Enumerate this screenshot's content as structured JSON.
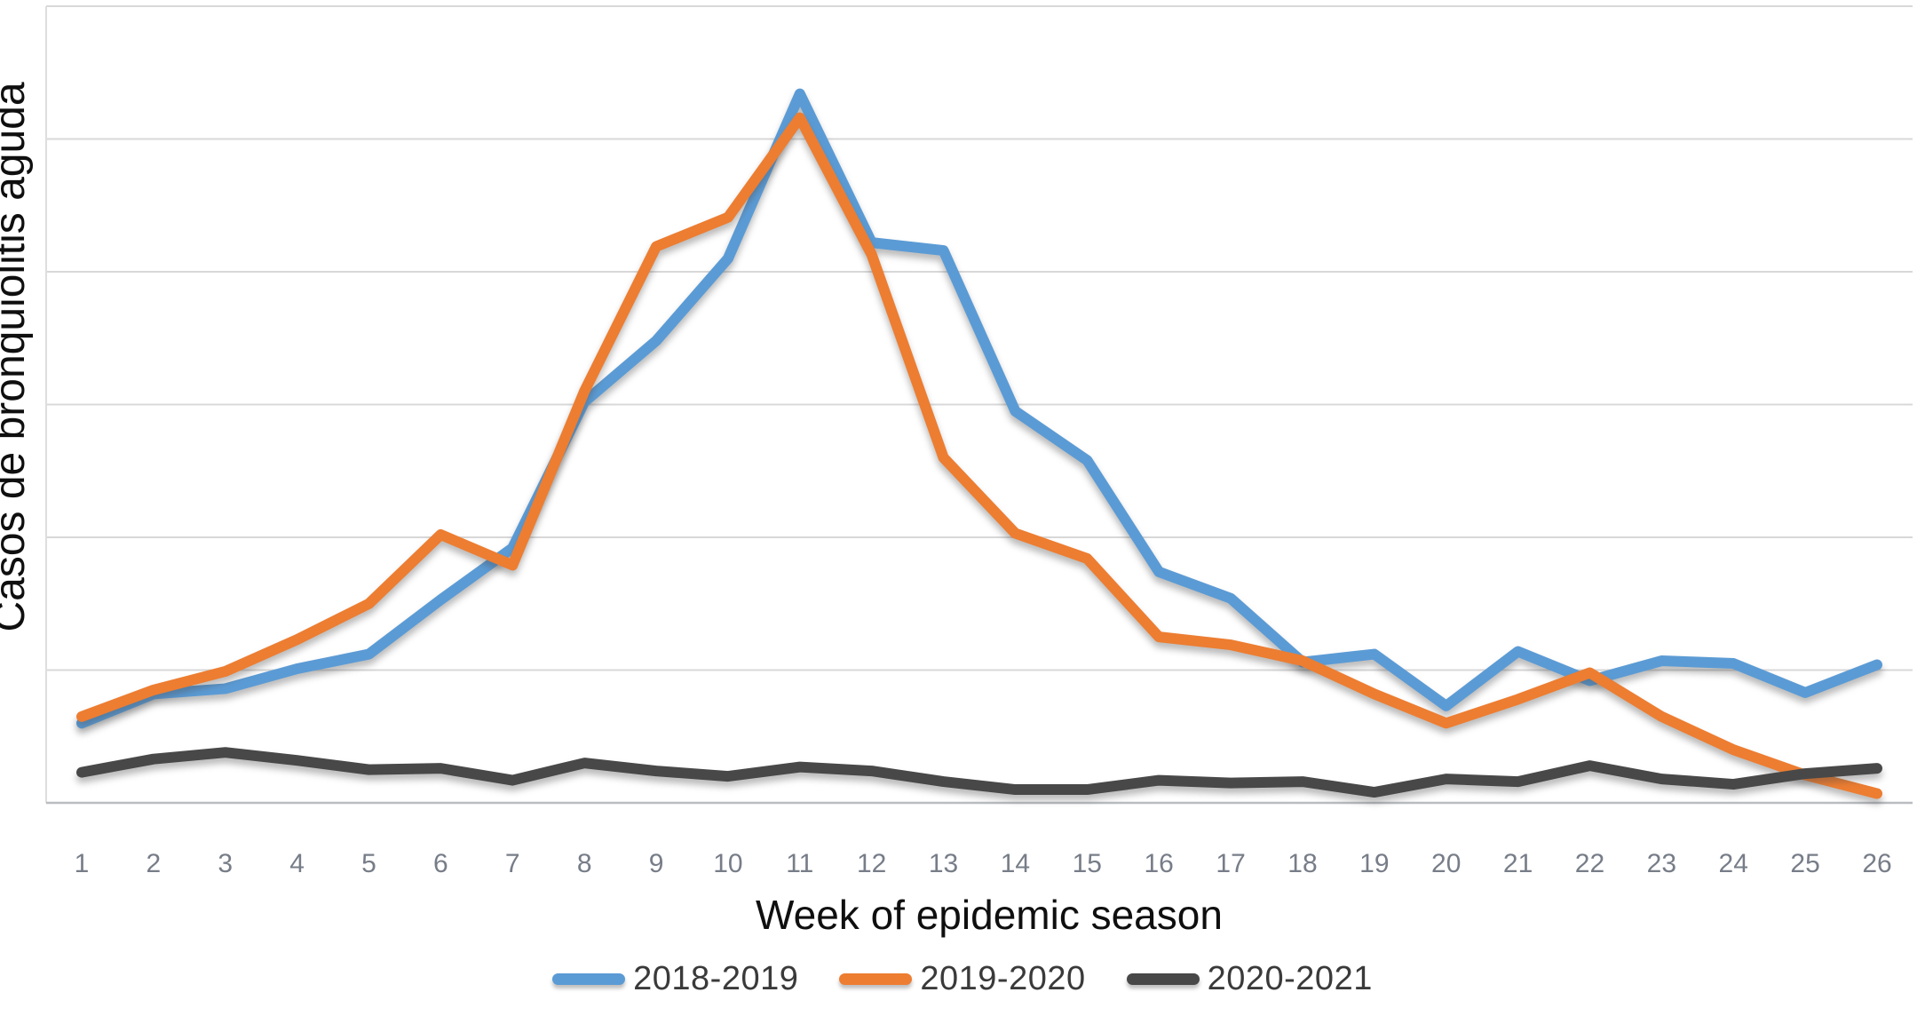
{
  "page": {
    "background_color": "#ffffff"
  },
  "chart_data": {
    "type": "line",
    "title": "",
    "xlabel": "Week of epidemic season",
    "ylabel": "Casos de bronquiolitis aguda",
    "categories": [
      1,
      2,
      3,
      4,
      5,
      6,
      7,
      8,
      9,
      10,
      11,
      12,
      13,
      14,
      15,
      16,
      17,
      18,
      19,
      20,
      21,
      22,
      23,
      24,
      25,
      26
    ],
    "series": [
      {
        "name": "2018-2019",
        "color": "#5B9BD5",
        "values": [
          0.6,
          0.82,
          0.86,
          1.01,
          1.12,
          1.53,
          1.92,
          3.02,
          3.48,
          4.1,
          5.34,
          4.22,
          4.16,
          2.95,
          2.58,
          1.74,
          1.54,
          1.06,
          1.12,
          0.73,
          1.14,
          0.92,
          1.07,
          1.05,
          0.83,
          1.04
        ]
      },
      {
        "name": "2019-2020",
        "color": "#ED7D31",
        "values": [
          0.65,
          0.85,
          0.99,
          1.23,
          1.5,
          2.02,
          1.79,
          3.1,
          4.19,
          4.41,
          5.16,
          4.13,
          2.6,
          2.03,
          1.84,
          1.25,
          1.19,
          1.07,
          0.82,
          0.6,
          0.78,
          0.98,
          0.65,
          0.4,
          0.21,
          0.07
        ]
      },
      {
        "name": "2020-2021",
        "color": "#484848",
        "values": [
          0.23,
          0.33,
          0.38,
          0.32,
          0.25,
          0.26,
          0.17,
          0.3,
          0.24,
          0.2,
          0.27,
          0.24,
          0.16,
          0.1,
          0.1,
          0.17,
          0.15,
          0.16,
          0.08,
          0.18,
          0.16,
          0.28,
          0.18,
          0.14,
          0.22,
          0.26
        ]
      }
    ],
    "y_axis": {
      "min": 0,
      "max": 6,
      "gridline_step": 1,
      "tick_labels_visible": false,
      "unit": "gridline units (no numeric labels shown on axis)"
    },
    "grid": true,
    "legend_position": "bottom-center",
    "styles": {
      "gridline_color": "#d8d8d8",
      "axis_line_color": "#b9bcc0",
      "tick_label_color": "#777d88",
      "axis_title_color": "#0f0f0f",
      "legend_text_color": "#3a3a3a",
      "line_width": 12
    }
  }
}
